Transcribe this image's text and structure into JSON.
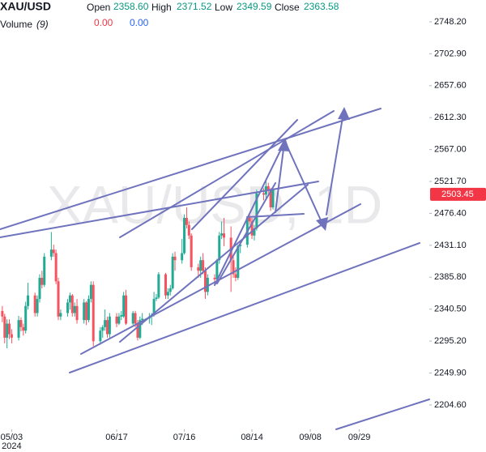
{
  "chart_data": {
    "type": "candlestick",
    "symbol": "XAU/USD",
    "legend": {
      "open_label": "Open",
      "open": "2358.60",
      "high_label": "High",
      "high": "2371.52",
      "low_label": "Low",
      "low": "2349.59",
      "close_label": "Close",
      "close": "2363.58",
      "volume_label": "Volume",
      "volume_period": "(9)",
      "volume_value_1": "0.00",
      "volume_value_2": "0.00"
    },
    "watermark": "XAU/USD, 1D",
    "up_color": "#22ab94",
    "down_color": "#f7525f",
    "x": [
      "2024-04-29",
      "2024-04-30",
      "2024-05-01",
      "2024-05-02",
      "2024-05-03",
      "2024-05-06",
      "2024-05-07",
      "2024-05-08",
      "2024-05-09",
      "2024-05-10",
      "2024-05-13",
      "2024-05-14",
      "2024-05-15",
      "2024-05-16",
      "2024-05-17",
      "2024-05-20",
      "2024-05-21",
      "2024-05-22",
      "2024-05-23",
      "2024-05-24",
      "2024-05-27",
      "2024-05-28",
      "2024-05-29",
      "2024-05-30",
      "2024-05-31",
      "2024-06-03",
      "2024-06-04",
      "2024-06-05",
      "2024-06-06",
      "2024-06-07",
      "2024-06-10",
      "2024-06-11",
      "2024-06-12",
      "2024-06-13",
      "2024-06-14",
      "2024-06-17",
      "2024-06-18",
      "2024-06-19",
      "2024-06-20",
      "2024-06-21",
      "2024-06-24",
      "2024-06-25",
      "2024-06-26",
      "2024-06-27",
      "2024-06-28",
      "2024-07-01",
      "2024-07-02",
      "2024-07-03",
      "2024-07-04",
      "2024-07-05",
      "2024-07-08",
      "2024-07-09",
      "2024-07-10",
      "2024-07-11",
      "2024-07-12",
      "2024-07-15",
      "2024-07-16",
      "2024-07-17",
      "2024-07-18",
      "2024-07-19",
      "2024-07-22",
      "2024-07-23",
      "2024-07-24",
      "2024-07-25",
      "2024-07-26",
      "2024-07-29",
      "2024-07-30",
      "2024-07-31",
      "2024-08-01",
      "2024-08-02",
      "2024-08-05",
      "2024-08-06",
      "2024-08-07",
      "2024-08-08",
      "2024-08-09",
      "2024-08-12",
      "2024-08-13",
      "2024-08-14",
      "2024-08-15",
      "2024-08-16",
      "2024-08-19",
      "2024-08-20",
      "2024-08-21",
      "2024-08-22",
      "2024-08-23"
    ],
    "open": [
      2338,
      2330,
      2300,
      2320,
      2305,
      2300,
      2325,
      2315,
      2310,
      2345,
      2360,
      2335,
      2355,
      2385,
      2375,
      2415,
      2425,
      2420,
      2380,
      2330,
      2335,
      2350,
      2360,
      2335,
      2345,
      2325,
      2350,
      2325,
      2355,
      2375,
      2295,
      2310,
      2315,
      2325,
      2305,
      2330,
      2320,
      2330,
      2330,
      2360,
      2320,
      2335,
      2320,
      2300,
      2325,
      2327,
      2330,
      2332,
      2355,
      2357,
      2390,
      2360,
      2365,
      2370,
      2415,
      2410,
      2420,
      2470,
      2460,
      2445,
      2400,
      2395,
      2410,
      2395,
      2365,
      2385,
      2383,
      2410,
      2445,
      2448,
      2442,
      2410,
      2390,
      2385,
      2430,
      2432,
      2470,
      2465,
      2445,
      2455,
      2505,
      2503,
      2515,
      2510,
      2485
    ],
    "high": [
      2345,
      2334,
      2326,
      2326,
      2312,
      2331,
      2329,
      2320,
      2351,
      2378,
      2364,
      2360,
      2390,
      2395,
      2420,
      2450,
      2432,
      2425,
      2385,
      2340,
      2355,
      2364,
      2362,
      2350,
      2355,
      2355,
      2352,
      2360,
      2380,
      2380,
      2315,
      2318,
      2340,
      2330,
      2335,
      2335,
      2335,
      2338,
      2365,
      2368,
      2338,
      2338,
      2325,
      2330,
      2335,
      2335,
      2335,
      2365,
      2362,
      2393,
      2392,
      2370,
      2375,
      2420,
      2422,
      2440,
      2475,
      2485,
      2465,
      2448,
      2405,
      2415,
      2420,
      2400,
      2390,
      2390,
      2412,
      2450,
      2465,
      2470,
      2458,
      2415,
      2400,
      2432,
      2435,
      2472,
      2474,
      2470,
      2460,
      2510,
      2512,
      2525,
      2520,
      2512,
      2515
    ],
    "low": [
      2322,
      2292,
      2285,
      2298,
      2292,
      2296,
      2309,
      2303,
      2306,
      2340,
      2330,
      2330,
      2350,
      2370,
      2372,
      2410,
      2415,
      2376,
      2325,
      2325,
      2330,
      2340,
      2330,
      2330,
      2320,
      2320,
      2318,
      2322,
      2350,
      2288,
      2290,
      2300,
      2310,
      2300,
      2300,
      2315,
      2318,
      2325,
      2328,
      2318,
      2318,
      2315,
      2296,
      2298,
      2318,
      2320,
      2318,
      2330,
      2352,
      2355,
      2355,
      2355,
      2360,
      2368,
      2395,
      2405,
      2418,
      2455,
      2440,
      2395,
      2385,
      2385,
      2390,
      2355,
      2360,
      2375,
      2380,
      2405,
      2440,
      2430,
      2365,
      2385,
      2380,
      2382,
      2420,
      2428,
      2460,
      2440,
      2438,
      2452,
      2495,
      2498,
      2505,
      2480,
      2482
    ],
    "close": [
      2330,
      2300,
      2320,
      2305,
      2300,
      2325,
      2315,
      2310,
      2345,
      2360,
      2335,
      2355,
      2385,
      2375,
      2415,
      2425,
      2420,
      2380,
      2330,
      2335,
      2350,
      2360,
      2335,
      2345,
      2325,
      2350,
      2325,
      2355,
      2375,
      2295,
      2310,
      2315,
      2325,
      2305,
      2330,
      2320,
      2330,
      2332,
      2360,
      2320,
      2335,
      2320,
      2300,
      2325,
      2327,
      2330,
      2332,
      2355,
      2357,
      2390,
      2360,
      2365,
      2370,
      2415,
      2410,
      2420,
      2470,
      2460,
      2445,
      2400,
      2395,
      2410,
      2395,
      2365,
      2385,
      2383,
      2410,
      2445,
      2448,
      2442,
      2410,
      2390,
      2385,
      2430,
      2432,
      2470,
      2465,
      2445,
      2455,
      2505,
      2503,
      2515,
      2510,
      2485,
      2510
    ],
    "xlim": [
      "2024-04-28",
      "2024-10-29"
    ],
    "xticks": [
      {
        "value": "2024-05-03",
        "label": "05/03"
      },
      {
        "value": "2024-06-17",
        "label": "06/17"
      },
      {
        "value": "2024-07-16",
        "label": "07/16"
      },
      {
        "value": "2024-08-14",
        "label": "08/14"
      },
      {
        "value": "2024-09-08",
        "label": "09/08"
      },
      {
        "value": "2024-09-29",
        "label": "09/29"
      }
    ],
    "year_label": "2024",
    "ylim": [
      2170,
      2779.2
    ],
    "yticks": [
      {
        "value": 2748.2,
        "label": "2748.20"
      },
      {
        "value": 2702.9,
        "label": "2702.90"
      },
      {
        "value": 2657.6,
        "label": "2657.60"
      },
      {
        "value": 2612.3,
        "label": "2612.30"
      },
      {
        "value": 2567,
        "label": "2567.00"
      },
      {
        "value": 2521.7,
        "label": "2521.70"
      },
      {
        "value": 2476.4,
        "label": "2476.40"
      },
      {
        "value": 2431.1,
        "label": "2431.10"
      },
      {
        "value": 2385.8,
        "label": "2385.80"
      },
      {
        "value": 2340.5,
        "label": "2340.50"
      },
      {
        "value": 2295.2,
        "label": "2295.20"
      },
      {
        "value": 2249.9,
        "label": "2249.90"
      },
      {
        "value": 2204.6,
        "label": "2204.60"
      }
    ],
    "last_price": {
      "value": 2503.45,
      "label": "2503.45"
    },
    "last_price_color": "#f23645"
  }
}
